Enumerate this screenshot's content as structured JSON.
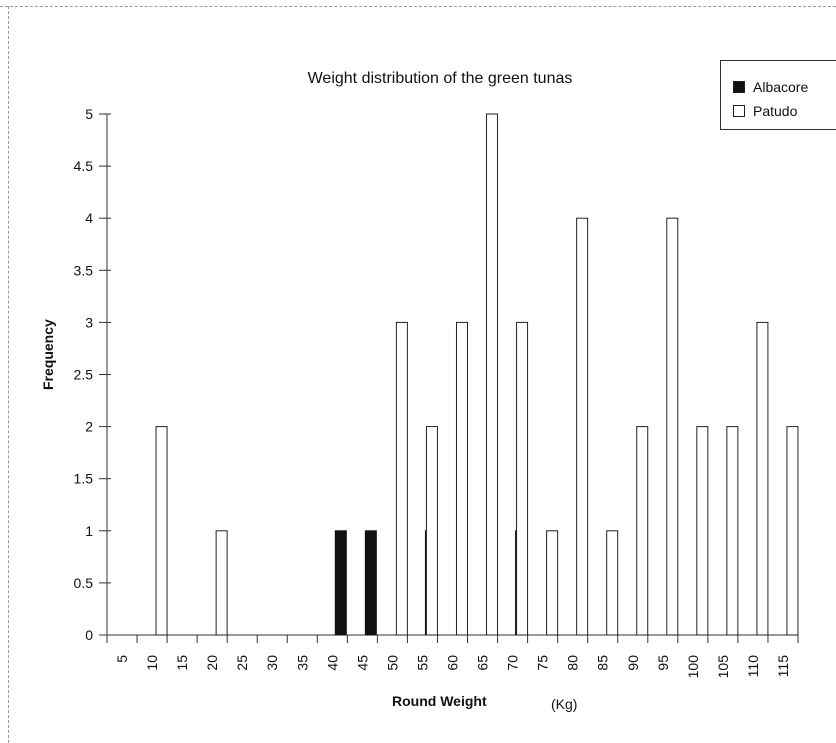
{
  "chart_data": {
    "type": "bar",
    "title": "Weight distribution of the green tunas",
    "xlabel": "Round Weight",
    "xunit": "(Kg)",
    "ylabel": "Frequency",
    "ylim": [
      0,
      5
    ],
    "yticks": [
      "0",
      "0.5",
      "1",
      "1.5",
      "2",
      "2.5",
      "3",
      "3.5",
      "4",
      "4.5",
      "5"
    ],
    "categories": [
      "5",
      "10",
      "15",
      "20",
      "25",
      "30",
      "35",
      "40",
      "45",
      "50",
      "55",
      "60",
      "65",
      "70",
      "75",
      "80",
      "85",
      "90",
      "95",
      "100",
      "105",
      "110",
      "115"
    ],
    "series": [
      {
        "name": "Albacore",
        "color": "#111111",
        "values": [
          0,
          0,
          0,
          0,
          0,
          0,
          0,
          1,
          1,
          0,
          1,
          0,
          0,
          1,
          0,
          0,
          0,
          0,
          0,
          0,
          0,
          0,
          0
        ]
      },
      {
        "name": "Patudo",
        "color": "#ffffff",
        "values": [
          0,
          2,
          0,
          1,
          0,
          0,
          0,
          0,
          0,
          3,
          2,
          3,
          5,
          3,
          1,
          4,
          1,
          2,
          4,
          2,
          2,
          3,
          2
        ]
      }
    ],
    "legend_position": "top-right",
    "grid": false
  }
}
